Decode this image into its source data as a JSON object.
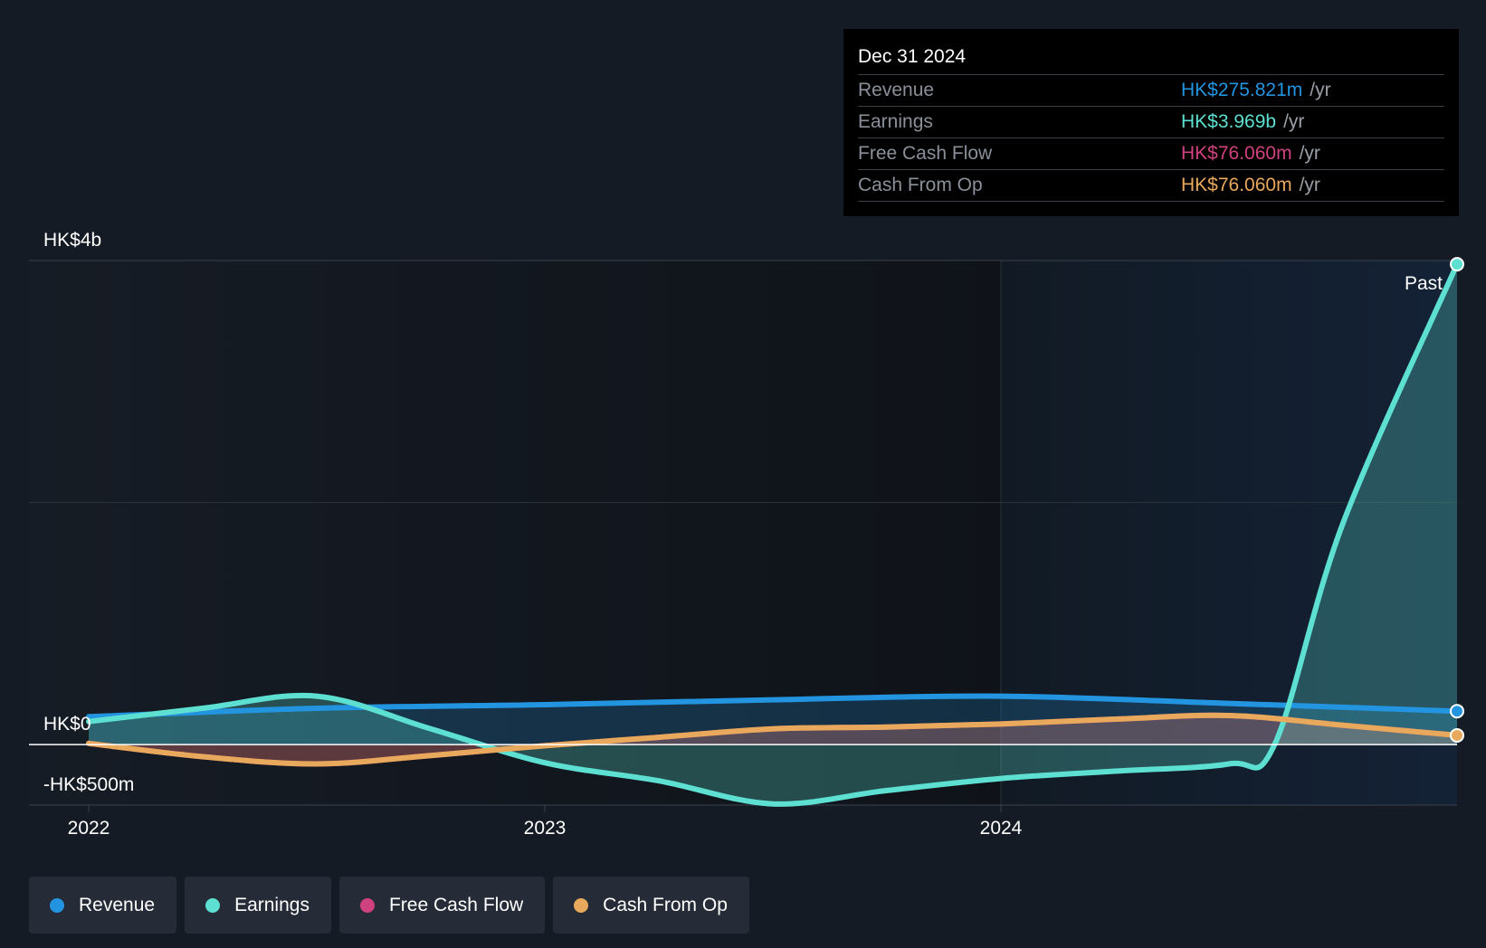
{
  "tooltip": {
    "date": "Dec 31 2024",
    "rows": [
      {
        "label": "Revenue",
        "value": "HK$275.821m",
        "unit": "/yr",
        "color": "#2394df"
      },
      {
        "label": "Earnings",
        "value": "HK$3.969b",
        "unit": "/yr",
        "color": "#5de0d1"
      },
      {
        "label": "Free Cash Flow",
        "value": "HK$76.060m",
        "unit": "/yr",
        "color": "#d0427f"
      },
      {
        "label": "Cash From Op",
        "value": "HK$76.060m",
        "unit": "/yr",
        "color": "#e8a95c"
      }
    ]
  },
  "legend": [
    {
      "label": "Revenue",
      "color": "#2394df"
    },
    {
      "label": "Earnings",
      "color": "#5de0d1"
    },
    {
      "label": "Free Cash Flow",
      "color": "#d0427f"
    },
    {
      "label": "Cash From Op",
      "color": "#e8a95c"
    }
  ],
  "chart_data": {
    "type": "line",
    "y_ticks": [
      {
        "value": 4000,
        "label": "HK$4b"
      },
      {
        "value": 0,
        "label": "HK$0"
      },
      {
        "value": -500,
        "label": "-HK$500m"
      }
    ],
    "x_ticks": [
      {
        "value": 2022.0,
        "label": "2022"
      },
      {
        "value": 2023.0,
        "label": "2023"
      },
      {
        "value": 2024.0,
        "label": "2024"
      }
    ],
    "ylim": [
      -500,
      4000
    ],
    "xlim": [
      2022.0,
      2025.0
    ],
    "past_label": "Past",
    "past_start": 2024.0,
    "grid": true,
    "colors": {
      "Revenue": "#2394df",
      "Earnings": "#5de0d1",
      "Free Cash Flow": "#d0427f",
      "Cash From Op": "#e8a95c"
    },
    "series": [
      {
        "name": "Revenue",
        "points": [
          [
            2022.0,
            230
          ],
          [
            2022.5,
            300
          ],
          [
            2023.0,
            330
          ],
          [
            2023.5,
            370
          ],
          [
            2024.0,
            400
          ],
          [
            2024.5,
            340
          ],
          [
            2025.0,
            276
          ]
        ]
      },
      {
        "name": "Earnings",
        "points": [
          [
            2022.0,
            190
          ],
          [
            2022.25,
            300
          ],
          [
            2022.5,
            400
          ],
          [
            2022.75,
            130
          ],
          [
            2023.0,
            -150
          ],
          [
            2023.25,
            -300
          ],
          [
            2023.5,
            -490
          ],
          [
            2023.75,
            -380
          ],
          [
            2024.0,
            -280
          ],
          [
            2024.25,
            -220
          ],
          [
            2024.5,
            -160
          ],
          [
            2024.6,
            0
          ],
          [
            2024.75,
            1830
          ],
          [
            2025.0,
            3969
          ]
        ]
      },
      {
        "name": "Free Cash Flow",
        "points": [
          [
            2022.0,
            10
          ],
          [
            2022.25,
            -100
          ],
          [
            2022.5,
            -160
          ],
          [
            2022.75,
            -90
          ],
          [
            2023.0,
            -10
          ],
          [
            2023.25,
            60
          ],
          [
            2023.5,
            130
          ],
          [
            2023.75,
            145
          ],
          [
            2024.0,
            170
          ],
          [
            2024.25,
            210
          ],
          [
            2024.5,
            240
          ],
          [
            2024.75,
            160
          ],
          [
            2025.0,
            76
          ]
        ]
      },
      {
        "name": "Cash From Op",
        "points": [
          [
            2022.0,
            10
          ],
          [
            2022.25,
            -100
          ],
          [
            2022.5,
            -160
          ],
          [
            2022.75,
            -90
          ],
          [
            2023.0,
            -10
          ],
          [
            2023.25,
            60
          ],
          [
            2023.5,
            130
          ],
          [
            2023.75,
            145
          ],
          [
            2024.0,
            170
          ],
          [
            2024.25,
            210
          ],
          [
            2024.5,
            240
          ],
          [
            2024.75,
            160
          ],
          [
            2025.0,
            76
          ]
        ]
      }
    ]
  }
}
